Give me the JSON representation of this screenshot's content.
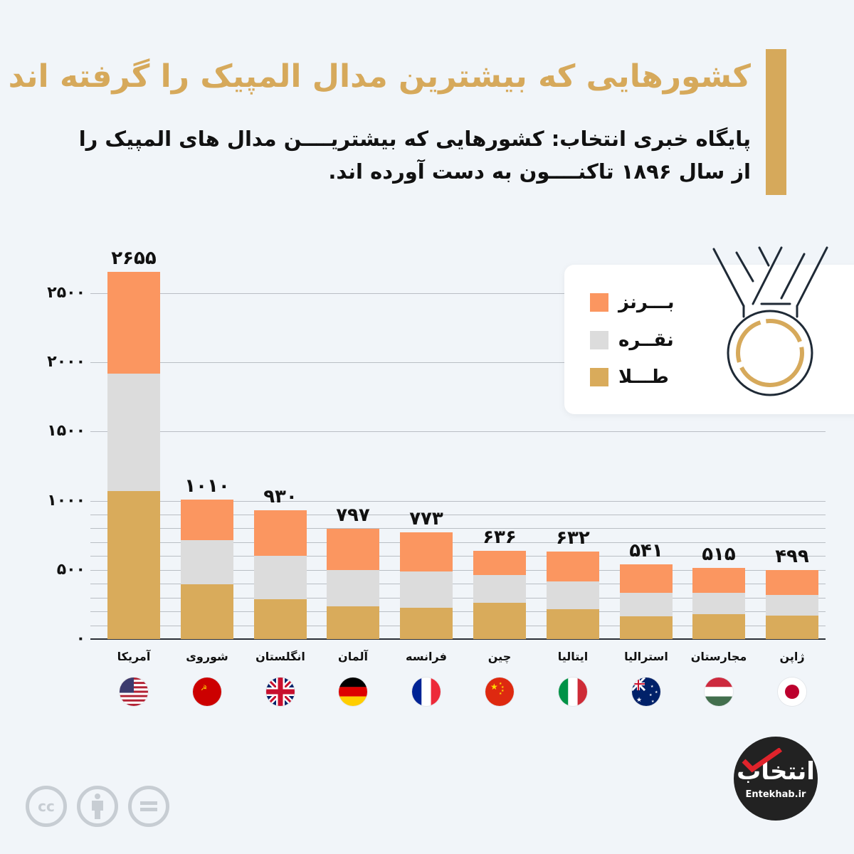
{
  "header": {
    "title": "کشورهایی که بیشترین مدال المپیک را گرفته اند",
    "subtitle": "پایگاه خبری انتخاب: کشورهایی که بیشتریــــن مدال های المپیک را از سال ۱۸۹۶ تاکنــــون به دست آورده اند.",
    "accent_color": "#d6a95b"
  },
  "legend": {
    "items": [
      {
        "key": "bronze",
        "label": "بـــرنز",
        "color": "#fb9660"
      },
      {
        "key": "silver",
        "label": "نقــره",
        "color": "#dcdcdc"
      },
      {
        "key": "gold",
        "label": "طـــلا",
        "color": "#d9ab5b"
      }
    ],
    "icon": "medal-icon"
  },
  "y_axis": {
    "ticks": [
      {
        "value": 0,
        "label": "۰"
      },
      {
        "value": 500,
        "label": "۵۰۰"
      },
      {
        "value": 1000,
        "label": "۱۰۰۰"
      },
      {
        "value": 1500,
        "label": "۱۵۰۰"
      },
      {
        "value": 2000,
        "label": "۲۰۰۰"
      },
      {
        "value": 2500,
        "label": "۲۵۰۰"
      }
    ]
  },
  "countries": [
    {
      "name": "آمریکا",
      "total_label": "۲۶۵۵",
      "flag": "usa-flag"
    },
    {
      "name": "شوروی",
      "total_label": "۱۰۱۰",
      "flag": "ussr-flag"
    },
    {
      "name": "انگلستان",
      "total_label": "۹۳۰",
      "flag": "uk-flag"
    },
    {
      "name": "آلمان",
      "total_label": "۷۹۷",
      "flag": "germany-flag"
    },
    {
      "name": "فرانسه",
      "total_label": "۷۷۳",
      "flag": "france-flag"
    },
    {
      "name": "چین",
      "total_label": "۶۳۶",
      "flag": "china-flag"
    },
    {
      "name": "ایتالیا",
      "total_label": "۶۳۲",
      "flag": "italy-flag"
    },
    {
      "name": "استرالیا",
      "total_label": "۵۴۱",
      "flag": "australia-flag"
    },
    {
      "name": "مجارستان",
      "total_label": "۵۱۵",
      "flag": "hungary-flag"
    },
    {
      "name": "ژاپن",
      "total_label": "۴۹۹",
      "flag": "japan-flag"
    }
  ],
  "footer": {
    "license_icons": [
      "cc-icon",
      "attribution-icon",
      "no-derivatives-icon"
    ],
    "cc_text": "cc",
    "logo_mark": "انتخاب",
    "logo_text": "Entekhab.ir"
  },
  "chart_data": {
    "type": "bar",
    "stacked": true,
    "title": "کشورهایی که بیشترین مدال المپیک را گرفته اند",
    "subtitle": "پایگاه خبری انتخاب: کشورهایی که بیشترین مدال های المپیک را از سال ۱۸۹۶ تاکنون به دست آورده اند.",
    "xlabel": "",
    "ylabel": "",
    "ylim": [
      0,
      2700
    ],
    "grid": true,
    "legend_position": "top-right",
    "categories": [
      "آمریکا",
      "شوروی",
      "انگلستان",
      "آلمان",
      "فرانسه",
      "چین",
      "ایتالیا",
      "استرالیا",
      "مجارستان",
      "ژاپن"
    ],
    "totals": [
      2655,
      1010,
      930,
      797,
      773,
      636,
      632,
      541,
      515,
      499
    ],
    "series": [
      {
        "name": "طلا",
        "color": "#d9ab5b",
        "values": [
          1072,
          395,
          285,
          237,
          227,
          262,
          217,
          164,
          181,
          169
        ]
      },
      {
        "name": "نقره",
        "color": "#dcdcdc",
        "values": [
          845,
          319,
          318,
          263,
          263,
          199,
          200,
          173,
          154,
          150
        ]
      },
      {
        "name": "برنز",
        "color": "#fb9660",
        "values": [
          738,
          296,
          327,
          297,
          283,
          175,
          215,
          204,
          180,
          180
        ]
      }
    ]
  }
}
